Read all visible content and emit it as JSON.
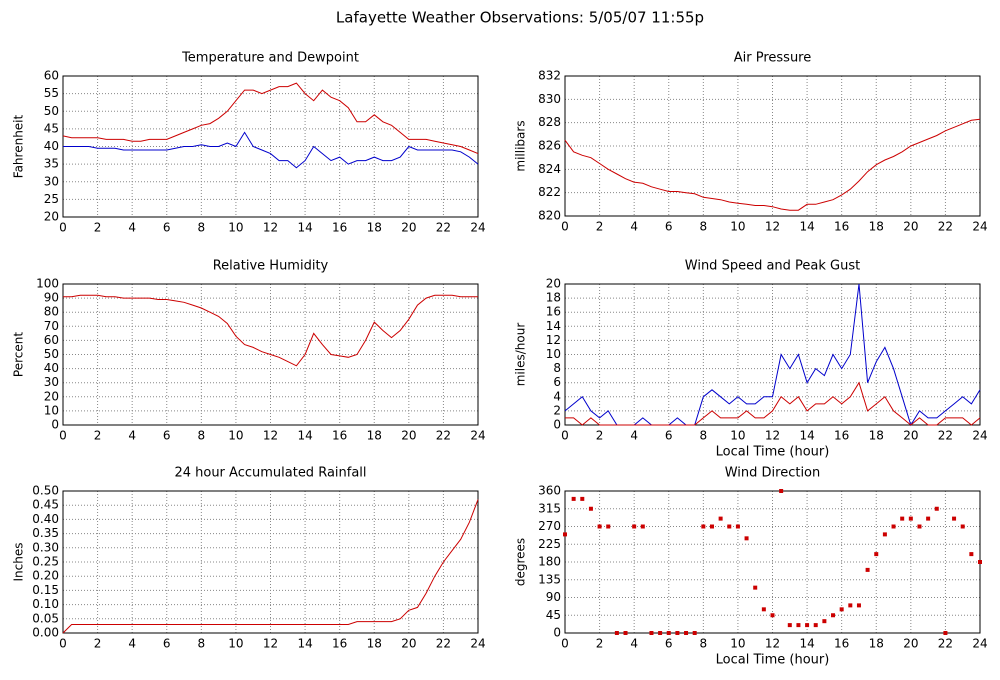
{
  "title": "Lafayette Weather Observations: 5/05/07 11:55p",
  "chart_data": [
    {
      "type": "line",
      "title": "Temperature and Dewpoint",
      "ylabel": "Fahrenheit",
      "x": [
        0,
        0.5,
        1,
        1.5,
        2,
        2.5,
        3,
        3.5,
        4,
        4.5,
        5,
        5.5,
        6,
        6.5,
        7,
        7.5,
        8,
        8.5,
        9,
        9.5,
        10,
        10.5,
        11,
        11.5,
        12,
        12.5,
        13,
        13.5,
        14,
        14.5,
        15,
        15.5,
        16,
        16.5,
        17,
        17.5,
        18,
        18.5,
        19,
        19.5,
        20,
        20.5,
        21,
        21.5,
        22,
        22.5,
        23,
        23.5,
        24
      ],
      "series": [
        {
          "color": "#cc0000",
          "values": [
            43,
            42.5,
            42.5,
            42.5,
            42.5,
            42,
            42,
            42,
            41.5,
            41.5,
            42,
            42,
            42,
            43,
            44,
            45,
            46,
            46.5,
            48,
            50,
            53,
            56,
            56,
            55,
            56,
            57,
            57,
            58,
            55,
            53,
            56,
            54,
            53,
            51,
            47,
            47,
            49,
            47,
            46,
            44,
            42,
            42,
            42,
            41.5,
            41,
            40.5,
            40,
            39,
            38
          ]
        },
        {
          "color": "#0000cc",
          "values": [
            40,
            40,
            40,
            40,
            39.5,
            39.5,
            39.5,
            39,
            39,
            39,
            39,
            39,
            39,
            39.5,
            40,
            40,
            40.5,
            40,
            40,
            41,
            40,
            44,
            40,
            39,
            38,
            36,
            36,
            34,
            36,
            40,
            38,
            36,
            37,
            35,
            36,
            36,
            37,
            36,
            36,
            37,
            40,
            39,
            39,
            39,
            39,
            39,
            38.5,
            37,
            35
          ]
        }
      ],
      "xlim": [
        0,
        24
      ],
      "xticks": [
        0,
        2,
        4,
        6,
        8,
        10,
        12,
        14,
        16,
        18,
        20,
        22,
        24
      ],
      "ylim": [
        20,
        60
      ],
      "yticks": [
        20,
        25,
        30,
        35,
        40,
        45,
        50,
        55,
        60
      ],
      "grid": true
    },
    {
      "type": "line",
      "title": "Air Pressure",
      "ylabel": "millibars",
      "x": [
        0,
        0.5,
        1,
        1.5,
        2,
        2.5,
        3,
        3.5,
        4,
        4.5,
        5,
        5.5,
        6,
        6.5,
        7,
        7.5,
        8,
        8.5,
        9,
        9.5,
        10,
        10.5,
        11,
        11.5,
        12,
        12.5,
        13,
        13.5,
        14,
        14.5,
        15,
        15.5,
        16,
        16.5,
        17,
        17.5,
        18,
        18.5,
        19,
        19.5,
        20,
        20.5,
        21,
        21.5,
        22,
        22.5,
        23,
        23.5,
        24
      ],
      "series": [
        {
          "color": "#cc0000",
          "values": [
            826.5,
            825.5,
            825.2,
            825,
            824.5,
            824,
            823.6,
            823.2,
            822.9,
            822.8,
            822.5,
            822.3,
            822.1,
            822.1,
            822,
            821.9,
            821.6,
            821.5,
            821.4,
            821.2,
            821.1,
            821,
            820.9,
            820.9,
            820.8,
            820.6,
            820.5,
            820.5,
            821,
            821,
            821.2,
            821.4,
            821.8,
            822.3,
            823,
            823.8,
            824.4,
            824.8,
            825.1,
            825.5,
            826,
            826.3,
            826.6,
            826.9,
            827.3,
            827.6,
            827.9,
            828.2,
            828.3
          ]
        }
      ],
      "xlim": [
        0,
        24
      ],
      "xticks": [
        0,
        2,
        4,
        6,
        8,
        10,
        12,
        14,
        16,
        18,
        20,
        22,
        24
      ],
      "ylim": [
        820,
        832
      ],
      "yticks": [
        820,
        822,
        824,
        826,
        828,
        830,
        832
      ],
      "grid": true
    },
    {
      "type": "line",
      "title": "Relative Humidity",
      "ylabel": "Percent",
      "x": [
        0,
        0.5,
        1,
        1.5,
        2,
        2.5,
        3,
        3.5,
        4,
        4.5,
        5,
        5.5,
        6,
        6.5,
        7,
        7.5,
        8,
        8.5,
        9,
        9.5,
        10,
        10.5,
        11,
        11.5,
        12,
        12.5,
        13,
        13.5,
        14,
        14.5,
        15,
        15.5,
        16,
        16.5,
        17,
        17.5,
        18,
        18.5,
        19,
        19.5,
        20,
        20.5,
        21,
        21.5,
        22,
        22.5,
        23,
        23.5,
        24
      ],
      "series": [
        {
          "color": "#cc0000",
          "values": [
            91,
            91,
            92,
            92,
            92,
            91,
            91,
            90,
            90,
            90,
            90,
            89,
            89,
            88,
            87,
            85,
            83,
            80,
            77,
            72,
            63,
            57,
            55,
            52,
            50,
            48,
            45,
            42,
            50,
            65,
            57,
            50,
            49,
            48,
            50,
            60,
            73,
            67,
            62,
            67,
            75,
            85,
            90,
            92,
            92,
            92,
            91,
            91,
            91
          ]
        }
      ],
      "xlim": [
        0,
        24
      ],
      "xticks": [
        0,
        2,
        4,
        6,
        8,
        10,
        12,
        14,
        16,
        18,
        20,
        22,
        24
      ],
      "ylim": [
        0,
        100
      ],
      "yticks": [
        0,
        10,
        20,
        30,
        40,
        50,
        60,
        70,
        80,
        90,
        100
      ],
      "grid": true
    },
    {
      "type": "line",
      "title": "Wind Speed and Peak Gust",
      "ylabel": "miles/hour",
      "xlabel": "Local Time (hour)",
      "x": [
        0,
        0.5,
        1,
        1.5,
        2,
        2.5,
        3,
        3.5,
        4,
        4.5,
        5,
        5.5,
        6,
        6.5,
        7,
        7.5,
        8,
        8.5,
        9,
        9.5,
        10,
        10.5,
        11,
        11.5,
        12,
        12.5,
        13,
        13.5,
        14,
        14.5,
        15,
        15.5,
        16,
        16.5,
        17,
        17.5,
        18,
        18.5,
        19,
        19.5,
        20,
        20.5,
        21,
        21.5,
        22,
        22.5,
        23,
        23.5,
        24
      ],
      "series": [
        {
          "color": "#0000cc",
          "values": [
            2,
            3,
            4,
            2,
            1,
            2,
            0,
            0,
            0,
            1,
            0,
            0,
            0,
            1,
            0,
            0,
            4,
            5,
            4,
            3,
            4,
            3,
            3,
            4,
            4,
            10,
            8,
            10,
            6,
            8,
            7,
            10,
            8,
            10,
            20,
            6,
            9,
            11,
            8,
            4,
            0,
            2,
            1,
            1,
            2,
            3,
            4,
            3,
            5
          ]
        },
        {
          "color": "#cc0000",
          "values": [
            1,
            1,
            0,
            1,
            0,
            0,
            0,
            0,
            0,
            0,
            0,
            0,
            0,
            0,
            0,
            0,
            1,
            2,
            1,
            1,
            1,
            2,
            1,
            1,
            2,
            4,
            3,
            4,
            2,
            3,
            3,
            4,
            3,
            4,
            6,
            2,
            3,
            4,
            2,
            1,
            0,
            1,
            0,
            0,
            1,
            1,
            1,
            0,
            1
          ]
        }
      ],
      "xlim": [
        0,
        24
      ],
      "xticks": [
        0,
        2,
        4,
        6,
        8,
        10,
        12,
        14,
        16,
        18,
        20,
        22,
        24
      ],
      "ylim": [
        0,
        20
      ],
      "yticks": [
        0,
        2,
        4,
        6,
        8,
        10,
        12,
        14,
        16,
        18,
        20
      ],
      "grid": true
    },
    {
      "type": "line",
      "title": "24 hour Accumulated Rainfall",
      "ylabel": "Inches",
      "x": [
        0,
        0.5,
        1,
        1.5,
        2,
        2.5,
        3,
        3.5,
        4,
        4.5,
        5,
        5.5,
        6,
        6.5,
        7,
        7.5,
        8,
        8.5,
        9,
        9.5,
        10,
        10.5,
        11,
        11.5,
        12,
        12.5,
        13,
        13.5,
        14,
        14.5,
        15,
        15.5,
        16,
        16.5,
        17,
        17.5,
        18,
        18.5,
        19,
        19.5,
        20,
        20.5,
        21,
        21.5,
        22,
        22.5,
        23,
        23.5,
        24
      ],
      "series": [
        {
          "color": "#cc0000",
          "values": [
            0,
            0.03,
            0.03,
            0.03,
            0.03,
            0.03,
            0.03,
            0.03,
            0.03,
            0.03,
            0.03,
            0.03,
            0.03,
            0.03,
            0.03,
            0.03,
            0.03,
            0.03,
            0.03,
            0.03,
            0.03,
            0.03,
            0.03,
            0.03,
            0.03,
            0.03,
            0.03,
            0.03,
            0.03,
            0.03,
            0.03,
            0.03,
            0.03,
            0.03,
            0.04,
            0.04,
            0.04,
            0.04,
            0.04,
            0.05,
            0.08,
            0.09,
            0.14,
            0.2,
            0.25,
            0.29,
            0.33,
            0.39,
            0.47
          ]
        }
      ],
      "xlim": [
        0,
        24
      ],
      "xticks": [
        0,
        2,
        4,
        6,
        8,
        10,
        12,
        14,
        16,
        18,
        20,
        22,
        24
      ],
      "ylim": [
        0,
        0.5
      ],
      "yticks": [
        {
          "value": 0,
          "label": "0.00"
        },
        {
          "value": 0.05,
          "label": "0.05"
        },
        {
          "value": 0.1,
          "label": "0.10"
        },
        {
          "value": 0.15,
          "label": "0.15"
        },
        {
          "value": 0.2,
          "label": "0.20"
        },
        {
          "value": 0.25,
          "label": "0.25"
        },
        {
          "value": 0.3,
          "label": "0.30"
        },
        {
          "value": 0.35,
          "label": "0.35"
        },
        {
          "value": 0.4,
          "label": "0.40"
        },
        {
          "value": 0.45,
          "label": "0.45"
        },
        {
          "value": 0.5,
          "label": "0.50"
        }
      ],
      "grid": true
    },
    {
      "type": "scatter",
      "title": "Wind Direction",
      "ylabel": "degrees",
      "xlabel": "Local Time (hour)",
      "x": [
        0,
        0.5,
        1,
        1.5,
        2,
        2.5,
        3,
        3.5,
        4,
        4.5,
        5,
        5.5,
        6,
        6.5,
        7,
        7.5,
        8,
        8.5,
        9,
        9.5,
        10,
        10.5,
        11,
        11.5,
        12,
        12.5,
        13,
        13.5,
        14,
        14.5,
        15,
        15.5,
        16,
        16.5,
        17,
        17.5,
        18,
        18.5,
        19,
        19.5,
        20,
        20.5,
        21,
        21.5,
        22,
        22.5,
        23,
        23.5,
        24
      ],
      "series": [
        {
          "color": "#cc0000",
          "values": [
            250,
            340,
            340,
            315,
            270,
            270,
            0,
            0,
            270,
            270,
            0,
            0,
            0,
            0,
            0,
            0,
            270,
            270,
            290,
            270,
            270,
            240,
            115,
            60,
            45,
            360,
            20,
            20,
            20,
            20,
            30,
            45,
            60,
            70,
            70,
            160,
            200,
            250,
            270,
            290,
            290,
            270,
            290,
            315,
            0,
            290,
            270,
            200,
            180
          ]
        }
      ],
      "xlim": [
        0,
        24
      ],
      "xticks": [
        0,
        2,
        4,
        6,
        8,
        10,
        12,
        14,
        16,
        18,
        20,
        22,
        24
      ],
      "ylim": [
        0,
        360
      ],
      "yticks": [
        0,
        45,
        90,
        135,
        180,
        225,
        270,
        315,
        360
      ],
      "grid": true
    }
  ]
}
